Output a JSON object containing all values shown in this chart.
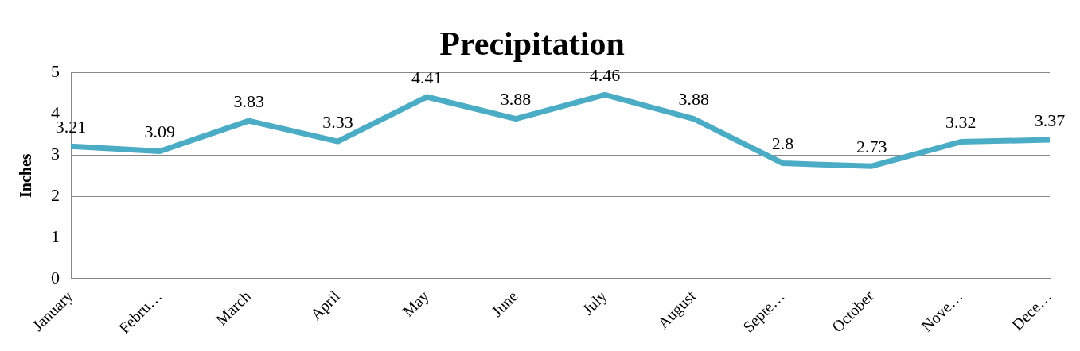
{
  "chart_data": {
    "type": "line",
    "title": "Precipitation",
    "ylabel": "Inches",
    "categories": [
      "January",
      "Febru…",
      "March",
      "April",
      "May",
      "June",
      "July",
      "August",
      "Septe…",
      "October",
      "Nove…",
      "Dece…"
    ],
    "series": [
      {
        "color": "#4bacc6",
        "values": [
          3.21,
          3.09,
          3.83,
          3.33,
          4.41,
          3.88,
          4.46,
          3.88,
          2.8,
          2.73,
          3.32,
          3.37
        ]
      }
    ],
    "ylim": [
      0,
      5
    ],
    "yticks": [
      0,
      1,
      2,
      3,
      4,
      5
    ],
    "grid": "y",
    "legend": false,
    "marker": "none",
    "data_labels": true
  }
}
